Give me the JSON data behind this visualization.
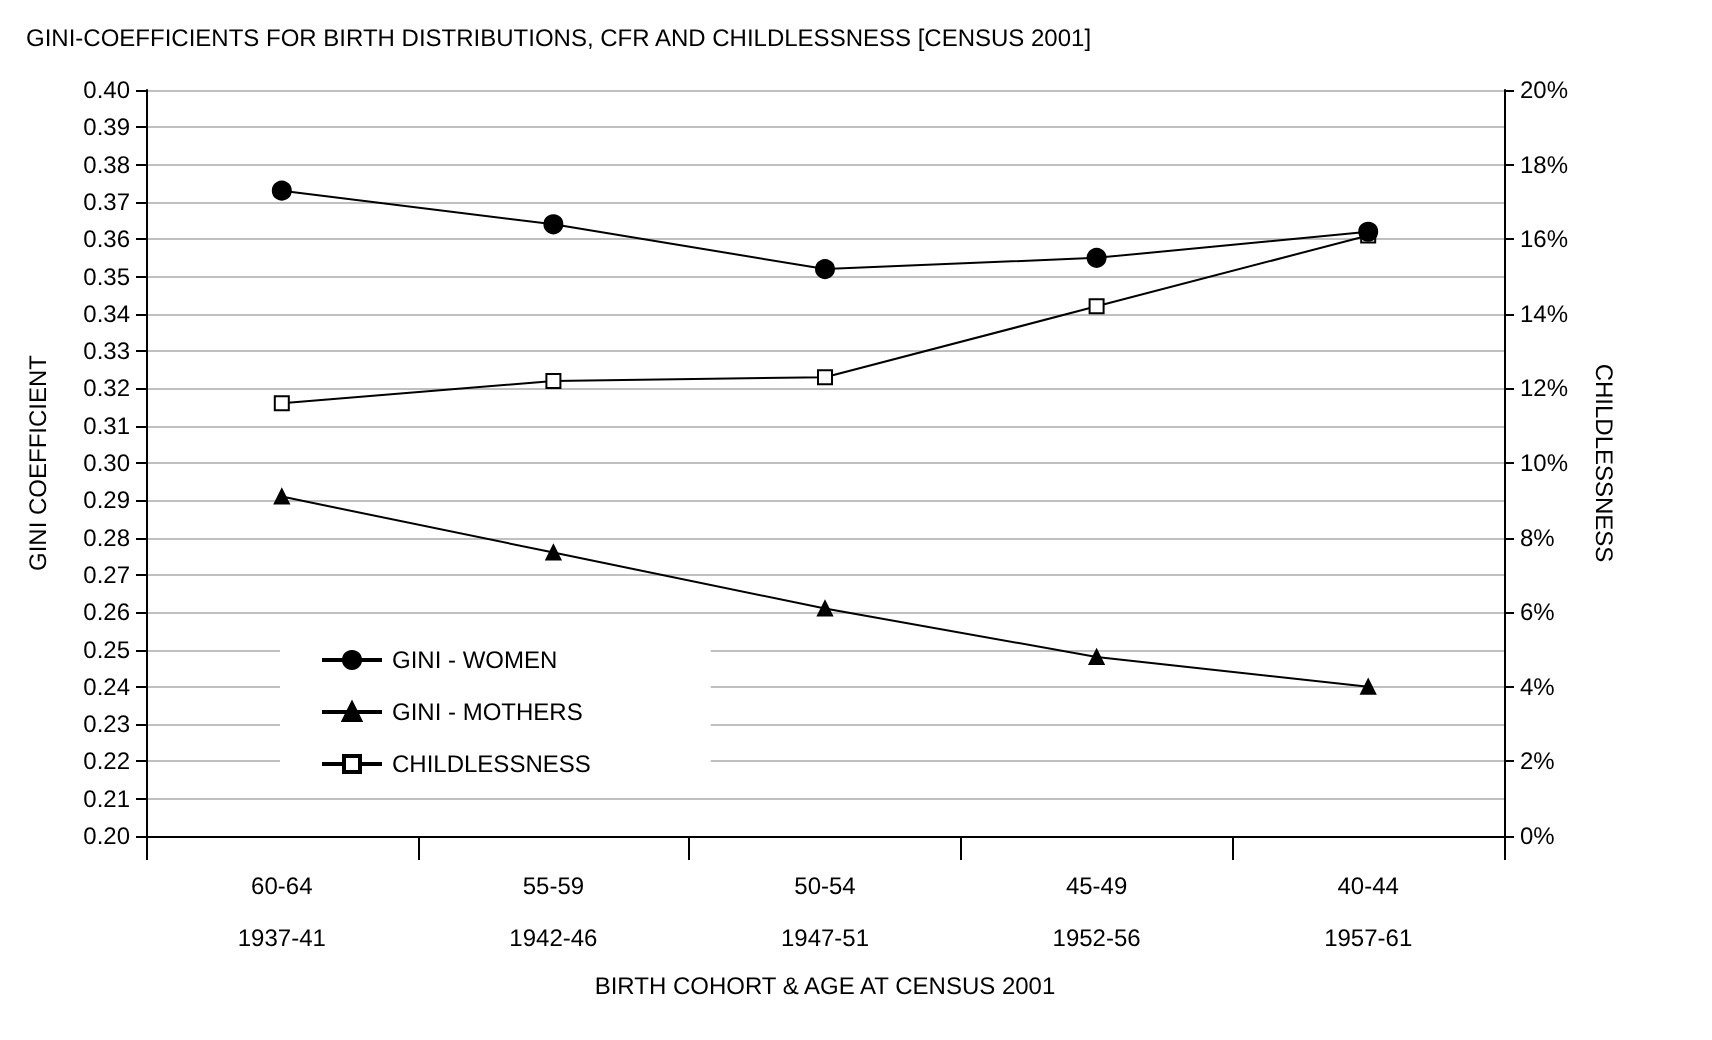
{
  "chart_data": {
    "type": "line",
    "title": "GINI-COEFFICIENTS FOR BIRTH DISTRIBUTIONS, CFR AND CHILDLESSNESS [CENSUS 2001]",
    "xlabel": "BIRTH COHORT & AGE AT CENSUS 2001",
    "ylabel": "GINI COEFFICIENT",
    "y2label": "CHILDLESSNESS",
    "categories": [
      "60-64\n1937-41",
      "55-59\n1942-46",
      "50-54\n1947-51",
      "45-49\n1952-56",
      "40-44\n1957-61"
    ],
    "series": [
      {
        "name": "GINI - WOMEN",
        "color": "#000000",
        "marker": "circle",
        "values": [
          0.373,
          0.364,
          0.352,
          0.355,
          0.362
        ]
      },
      {
        "name": "GINI - MOTHERS",
        "color": "#000000",
        "marker": "triangle",
        "values": [
          0.291,
          0.276,
          0.261,
          0.248,
          0.24
        ]
      },
      {
        "name": "CHILDLESSNESS",
        "color": "#000000",
        "marker": "square",
        "axis": "y2",
        "values": [
          11.6,
          12.2,
          12.3,
          14.2,
          16.1
        ]
      }
    ],
    "ylim": [
      0.2,
      0.4
    ],
    "yticks": [
      {
        "value": 0.2,
        "label": "0.20"
      },
      {
        "value": 0.21,
        "label": "0.21"
      },
      {
        "value": 0.22,
        "label": "0.22"
      },
      {
        "value": 0.23,
        "label": "0.23"
      },
      {
        "value": 0.24,
        "label": "0.24"
      },
      {
        "value": 0.25,
        "label": "0.25"
      },
      {
        "value": 0.26,
        "label": "0.26"
      },
      {
        "value": 0.27,
        "label": "0.27"
      },
      {
        "value": 0.28,
        "label": "0.28"
      },
      {
        "value": 0.29,
        "label": "0.29"
      },
      {
        "value": 0.3,
        "label": "0.30"
      },
      {
        "value": 0.31,
        "label": "0.31"
      },
      {
        "value": 0.32,
        "label": "0.32"
      },
      {
        "value": 0.33,
        "label": "0.33"
      },
      {
        "value": 0.34,
        "label": "0.34"
      },
      {
        "value": 0.35,
        "label": "0.35"
      },
      {
        "value": 0.36,
        "label": "0.36"
      },
      {
        "value": 0.37,
        "label": "0.37"
      },
      {
        "value": 0.38,
        "label": "0.38"
      },
      {
        "value": 0.39,
        "label": "0.39"
      },
      {
        "value": 0.4,
        "label": "0.40"
      }
    ],
    "y2lim": [
      0,
      20
    ],
    "y2ticks": [
      {
        "value": 0,
        "label": "0%"
      },
      {
        "value": 2,
        "label": "2%"
      },
      {
        "value": 4,
        "label": "4%"
      },
      {
        "value": 6,
        "label": "6%"
      },
      {
        "value": 8,
        "label": "8%"
      },
      {
        "value": 10,
        "label": "10%"
      },
      {
        "value": 12,
        "label": "12%"
      },
      {
        "value": 14,
        "label": "14%"
      },
      {
        "value": 16,
        "label": "16%"
      },
      {
        "value": 18,
        "label": "18%"
      },
      {
        "value": 20,
        "label": "20%"
      }
    ],
    "grid": "y",
    "legend": "bottom left",
    "line_style": "solid"
  }
}
